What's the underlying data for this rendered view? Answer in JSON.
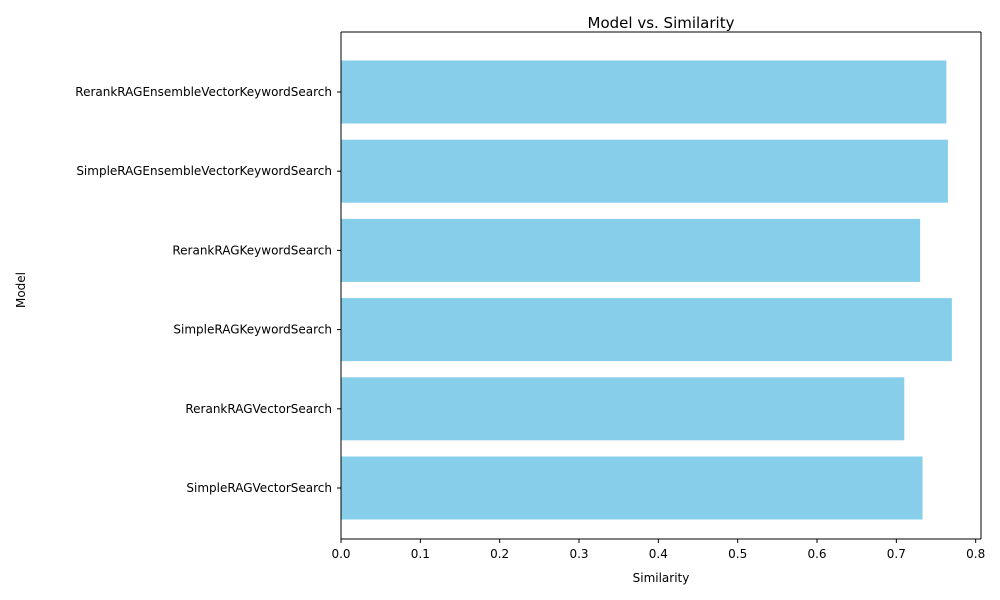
{
  "chart_data": {
    "type": "bar",
    "orientation": "horizontal",
    "title": "Model vs. Similarity",
    "xlabel": "Similarity",
    "ylabel": "Model",
    "xlim": [
      0.0,
      0.8
    ],
    "xticks": [
      "0.0",
      "0.1",
      "0.2",
      "0.3",
      "0.4",
      "0.5",
      "0.6",
      "0.7",
      "0.8"
    ],
    "categories": [
      "RerankRAGEnsembleVectorKeywordSearch",
      "SimpleRAGEnsembleVectorKeywordSearch",
      "RerankRAGKeywordSearch",
      "SimpleRAGKeywordSearch",
      "RerankRAGVectorSearch",
      "SimpleRAGVectorSearch"
    ],
    "values": [
      0.763,
      0.765,
      0.73,
      0.77,
      0.71,
      0.733
    ],
    "bar_color": "#87CEEB",
    "grid": false,
    "legend": "none"
  }
}
